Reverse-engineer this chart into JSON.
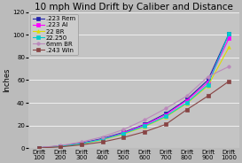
{
  "title": "10 mph Wind Drift by Caliber and Distance",
  "ylabel": "Inches",
  "x_labels": [
    "Drift\n100",
    "Drift\n200",
    "Drift\n300",
    "Drift\n400",
    "Drift\n500",
    "Drift\n600",
    "Drift\n700",
    "Drift\n800",
    "Drift\n900",
    "Drift\n1000"
  ],
  "x_values": [
    100,
    200,
    300,
    400,
    500,
    600,
    700,
    800,
    900,
    1000
  ],
  "series": [
    {
      "label": ".223 Rem",
      "color": "#2222AA",
      "marker": "s",
      "data": [
        0.5,
        2.0,
        4.5,
        8.5,
        14.0,
        21.0,
        30.5,
        43.0,
        60.0,
        101.0
      ]
    },
    {
      "label": ".223 AI",
      "color": "#FF00FF",
      "marker": "s",
      "data": [
        0.4,
        1.8,
        4.2,
        8.0,
        13.5,
        20.5,
        29.5,
        42.0,
        58.0,
        97.0
      ]
    },
    {
      "label": "22 BR",
      "color": "#DDDD00",
      "marker": "^",
      "data": [
        0.4,
        1.6,
        3.8,
        7.5,
        12.5,
        19.0,
        27.5,
        39.5,
        55.0,
        89.0
      ]
    },
    {
      "label": "22.250",
      "color": "#00CCCC",
      "marker": "s",
      "data": [
        0.4,
        1.7,
        4.0,
        7.8,
        13.0,
        19.5,
        28.0,
        40.0,
        56.0,
        101.0
      ]
    },
    {
      "label": "6mm BR",
      "color": "#BB88BB",
      "marker": "o",
      "data": [
        0.6,
        2.3,
        5.5,
        10.0,
        16.5,
        25.0,
        35.0,
        46.0,
        63.0,
        72.0
      ]
    },
    {
      "label": ".243 Win",
      "color": "#884444",
      "marker": "s",
      "data": [
        0.3,
        1.2,
        3.0,
        5.5,
        9.5,
        14.5,
        21.0,
        34.0,
        46.0,
        59.0
      ]
    }
  ],
  "ylim": [
    0,
    120
  ],
  "yticks": [
    0,
    20,
    40,
    60,
    80,
    100,
    120
  ],
  "bg_color": "#BBBBBB",
  "plot_bg_color": "#C4C4C4",
  "title_fontsize": 7.5,
  "axis_fontsize": 6,
  "tick_fontsize": 5,
  "legend_fontsize": 5
}
